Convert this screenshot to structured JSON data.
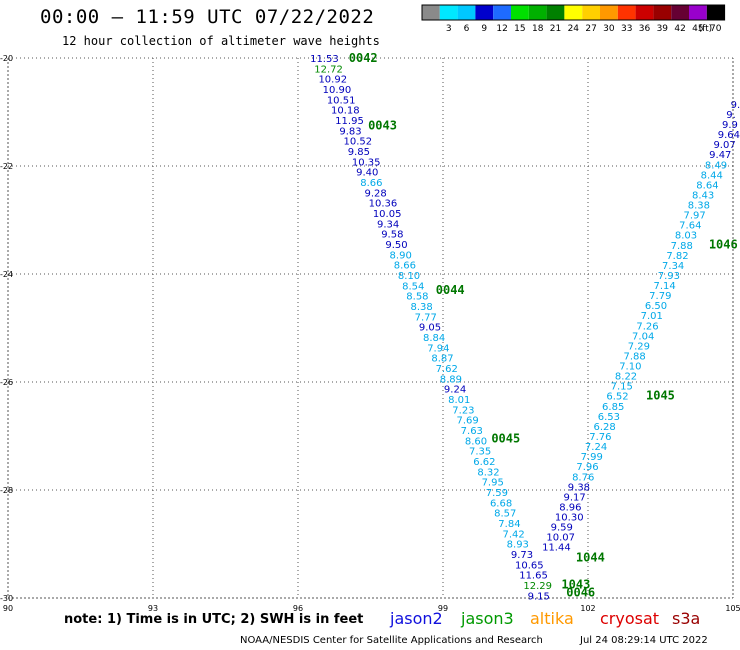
{
  "header": {
    "title": "00:00 – 11:59 UTC 07/22/2022",
    "subtitle": "12 hour collection of altimeter wave heights"
  },
  "legend": {
    "unit": "(ft)",
    "bins": [
      {
        "label": "",
        "color": "#8a8a8a"
      },
      {
        "label": "3",
        "color": "#00e8ff"
      },
      {
        "label": "6",
        "color": "#00c8ff"
      },
      {
        "label": "9",
        "color": "#0000cc"
      },
      {
        "label": "12",
        "color": "#1e6bff"
      },
      {
        "label": "15",
        "color": "#00e000"
      },
      {
        "label": "18",
        "color": "#00b000"
      },
      {
        "label": "21",
        "color": "#008000"
      },
      {
        "label": "24",
        "color": "#ffff00"
      },
      {
        "label": "27",
        "color": "#ffd000"
      },
      {
        "label": "30",
        "color": "#ff9900"
      },
      {
        "label": "33",
        "color": "#ff3300"
      },
      {
        "label": "36",
        "color": "#cc0000"
      },
      {
        "label": "39",
        "color": "#990000"
      },
      {
        "label": "42",
        "color": "#660033"
      },
      {
        "label": "45",
        "color": "#9900cc"
      },
      {
        "label": "70",
        "color": "#000000"
      }
    ]
  },
  "axes": {
    "lon_ticks": [
      "90",
      "93",
      "96",
      "99",
      "102",
      "105"
    ],
    "lat_ticks": [
      "-20",
      "-22",
      "-24",
      "-26",
      "-28",
      "-30"
    ],
    "lon_range": [
      90,
      105
    ],
    "lat_range": [
      -30,
      -20
    ],
    "grid": true
  },
  "passes": {
    "west": {
      "values": [
        "11.53",
        "12.72",
        "10.92",
        "10.90",
        "10.51",
        "10.18",
        "11.95",
        "9.83",
        "10.52",
        "9.85",
        "10.35",
        "9.40",
        "8.66",
        "9.28",
        "10.36",
        "10.05",
        "9.34",
        "9.58",
        "9.50",
        "8.90",
        "8.66",
        "8.10",
        "8.54",
        "8.58",
        "8.38",
        "7.77",
        "9.05",
        "8.84",
        "7.94",
        "8.87",
        "7.62",
        "8.89",
        "9.24",
        "8.01",
        "7.23",
        "7.69",
        "7.63",
        "8.60",
        "7.35",
        "6.62",
        "8.32",
        "7.95",
        "7.59",
        "6.68",
        "8.57",
        "7.84",
        "7.42",
        "8.93",
        "9.73",
        "10.65",
        "11.65",
        "12.29",
        "9.15"
      ],
      "colors": [
        "jason2",
        "jason3",
        "jason2",
        "jason2",
        "jason2",
        "jason2",
        "jason2",
        "jason2",
        "jason2",
        "jason2",
        "jason2",
        "jason2",
        "cyan",
        "jason2",
        "jason2",
        "jason2",
        "jason2",
        "jason2",
        "jason2",
        "cyan",
        "cyan",
        "cyan",
        "cyan",
        "cyan",
        "cyan",
        "cyan",
        "jason2",
        "cyan",
        "cyan",
        "cyan",
        "cyan",
        "cyan",
        "jason2",
        "cyan",
        "cyan",
        "cyan",
        "cyan",
        "cyan",
        "cyan",
        "cyan",
        "cyan",
        "cyan",
        "cyan",
        "cyan",
        "cyan",
        "cyan",
        "cyan",
        "cyan",
        "jason2",
        "jason2",
        "jason2",
        "jason3",
        "jason2"
      ]
    },
    "east": {
      "values": [
        "11.44",
        "10.07",
        "9.59",
        "10.30",
        "8.96",
        "9.17",
        "9.38",
        "8.76",
        "7.96",
        "7.99",
        "7.24",
        "7.76",
        "6.28",
        "6.53",
        "6.85",
        "6.52",
        "7.15",
        "8.22",
        "7.10",
        "7.88",
        "7.29",
        "7.04",
        "7.26",
        "7.01",
        "6.50",
        "7.79",
        "7.14",
        "7.93",
        "7.34",
        "7.82",
        "7.88",
        "8.03",
        "7.64",
        "7.97",
        "8.38",
        "8.43",
        "8.64",
        "8.44",
        "8.49",
        "9.47",
        "9.07",
        "9.64",
        "9.9",
        "9.",
        "9."
      ],
      "colors": [
        "jason2",
        "jason2",
        "jason2",
        "jason2",
        "jason2",
        "jason2",
        "jason2",
        "cyan",
        "cyan",
        "cyan",
        "cyan",
        "cyan",
        "cyan",
        "cyan",
        "cyan",
        "cyan",
        "cyan",
        "cyan",
        "cyan",
        "cyan",
        "cyan",
        "cyan",
        "cyan",
        "cyan",
        "cyan",
        "cyan",
        "cyan",
        "cyan",
        "cyan",
        "cyan",
        "cyan",
        "cyan",
        "cyan",
        "cyan",
        "cyan",
        "cyan",
        "cyan",
        "cyan",
        "cyan",
        "jason2",
        "jason2",
        "jason2",
        "jason2",
        "jason2",
        "jason2"
      ]
    },
    "time_labels": [
      "0042",
      "0043",
      "0044",
      "0045",
      "0046",
      "1043",
      "1044",
      "1045",
      "1046"
    ]
  },
  "colors": {
    "jason2": "#0000bb",
    "jason3": "#008800",
    "cyan": "#00a8e8",
    "time": "#007700",
    "grid": "#555555"
  },
  "footer": {
    "note": "note: 1) Time is in UTC; 2) SWH is in feet",
    "satellites": [
      {
        "name": "jason2",
        "color": "#1010dd"
      },
      {
        "name": "jason3",
        "color": "#009900"
      },
      {
        "name": "altika",
        "color": "#ff9900"
      },
      {
        "name": "cryosat",
        "color": "#dd0000"
      },
      {
        "name": "s3a",
        "color": "#990000"
      }
    ],
    "credit": "NOAA/NESDIS Center for Satellite Applications and Research",
    "timestamp": "Jul 24 08:29:14 UTC 2022"
  }
}
